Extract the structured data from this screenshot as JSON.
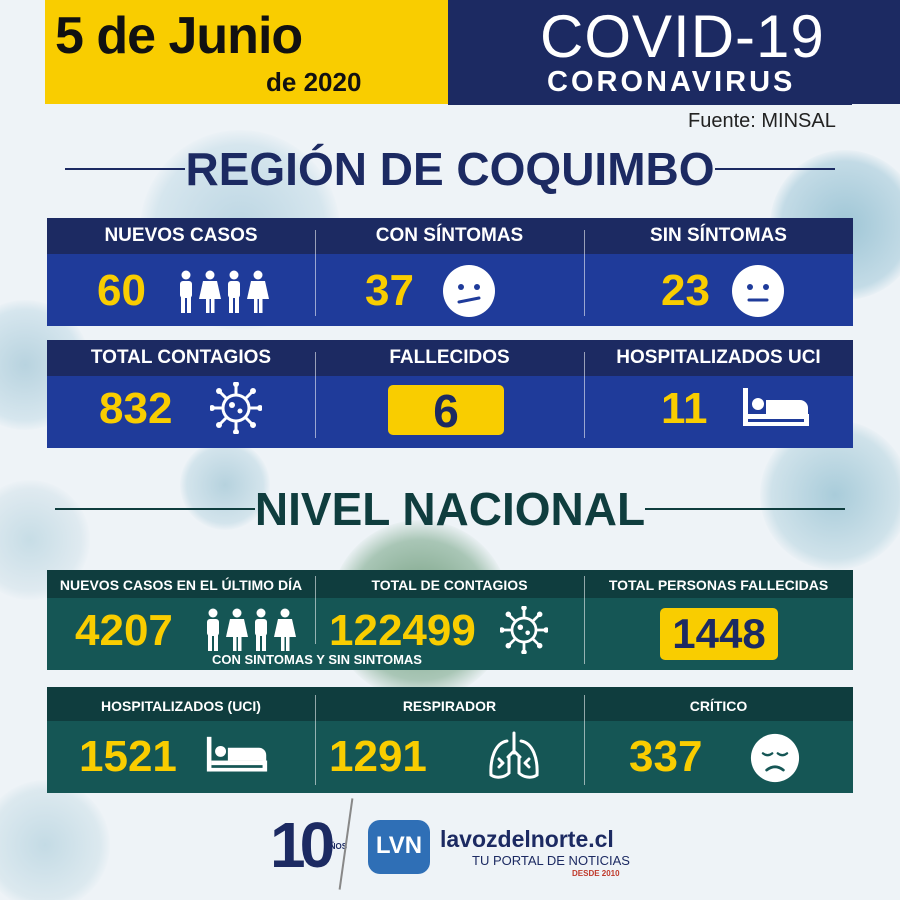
{
  "header": {
    "date": "5 de Junio",
    "year": "de 2020",
    "title": "COVID-19",
    "subtitle": "CORONAVIRUS",
    "source": "Fuente: MINSAL"
  },
  "region": {
    "title": "REGIÓN DE COQUIMBO",
    "row1": [
      {
        "label": "NUEVOS CASOS",
        "value": "60",
        "icon": "people-icon"
      },
      {
        "label": "CON SÍNTOMAS",
        "value": "37",
        "icon": "sick-face-icon"
      },
      {
        "label": "SIN SÍNTOMAS",
        "value": "23",
        "icon": "neutral-face-icon"
      }
    ],
    "row2": [
      {
        "label": "TOTAL CONTAGIOS",
        "value": "832",
        "icon": "virus-icon"
      },
      {
        "label": "FALLECIDOS",
        "value": "6"
      },
      {
        "label": "HOSPITALIZADOS UCI",
        "value": "11",
        "icon": "hospital-bed-icon"
      }
    ]
  },
  "national": {
    "title": "NIVEL NACIONAL",
    "row1": [
      {
        "label": "NUEVOS CASOS EN EL ÚLTIMO DÍA",
        "value": "4207",
        "icon": "people-icon"
      },
      {
        "label": "TOTAL DE CONTAGIOS",
        "value": "122499",
        "icon": "virus-icon"
      },
      {
        "label": "TOTAL PERSONAS FALLECIDAS",
        "value": "1448"
      }
    ],
    "row1_note": "CON SINTOMAS Y SIN SINTOMAS",
    "row2": [
      {
        "label": "HOSPITALIZADOS (UCI)",
        "value": "1521",
        "icon": "hospital-bed-icon"
      },
      {
        "label": "RESPIRADOR",
        "value": "1291",
        "icon": "lungs-icon"
      },
      {
        "label": "CRÍTICO",
        "value": "337",
        "icon": "sad-face-icon"
      }
    ]
  },
  "footer": {
    "anniversary_number": "10",
    "anniversary_word": "AÑOS",
    "logo_letters": "LVN",
    "site": "lavozdelnorte.cl",
    "tagline": "TU PORTAL DE NOTICIAS",
    "since": "DESDE 2010"
  },
  "colors": {
    "yellow": "#f9cd00",
    "navy": "#1c2a62",
    "region_blue": "#1f3b9a",
    "teal_dark": "#0f3d3e",
    "teal": "#155655"
  }
}
